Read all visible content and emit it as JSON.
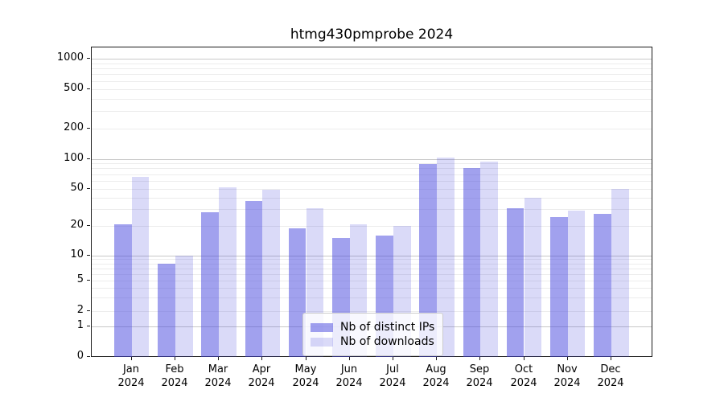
{
  "title": "htmg430pmprobe 2024",
  "legend": {
    "items": [
      {
        "label": "Nb of distinct IPs",
        "color": "rgba(68,68,221,0.5)"
      },
      {
        "label": "Nb of downloads",
        "color": "rgba(68,68,221,0.2)"
      }
    ]
  },
  "colors": {
    "bar_base": "#4444dd",
    "ips_bar": "rgba(68,68,221,0.5)",
    "downloads_bar": "rgba(68,68,221,0.2)",
    "major_grid": "#c8c8c8",
    "minor_grid": "#ececec",
    "axis": "#1a1a1a"
  },
  "chart_data": {
    "type": "bar",
    "title": "htmg430pmprobe 2024",
    "categories": [
      "Jan 2024",
      "Feb 2024",
      "Mar 2024",
      "Apr 2024",
      "May 2024",
      "Jun 2024",
      "Jul 2024",
      "Aug 2024",
      "Sep 2024",
      "Oct 2024",
      "Nov 2024",
      "Dec 2024"
    ],
    "series": [
      {
        "name": "Nb of distinct IPs",
        "color": "rgba(68,68,221,0.5)",
        "values": [
          21,
          8,
          28,
          37,
          19,
          15,
          16,
          88,
          81,
          31,
          25,
          27
        ]
      },
      {
        "name": "Nb of downloads",
        "color": "rgba(68,68,221,0.2)",
        "values": [
          66,
          10,
          51,
          49,
          31,
          21,
          20,
          103,
          93,
          40,
          29,
          50
        ]
      }
    ],
    "xlabel": "",
    "ylabel": "",
    "yscale": "symlog",
    "yticks": [
      0,
      1,
      2,
      5,
      10,
      20,
      50,
      100,
      200,
      500,
      1000
    ],
    "ylim": [
      0,
      1300
    ],
    "grid": true,
    "legend_position": "lower center"
  }
}
